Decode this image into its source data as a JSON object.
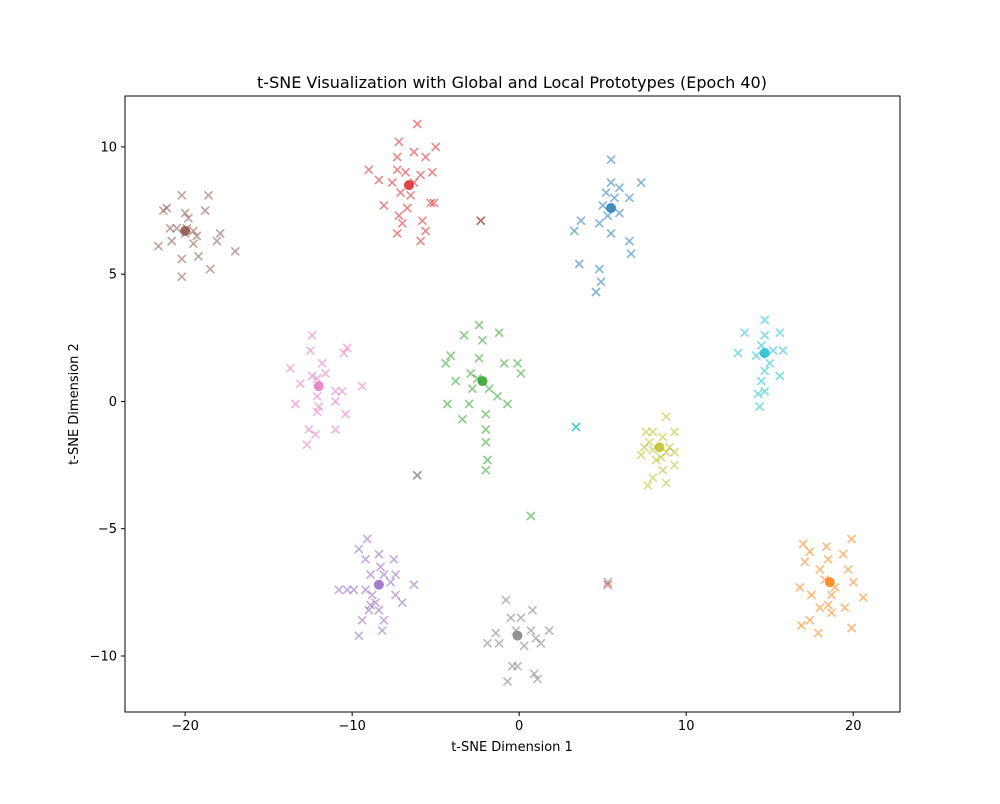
{
  "chart_data": {
    "type": "scatter",
    "title": "t-SNE Visualization with Global and Local Prototypes (Epoch 40)",
    "xlabel": "t-SNE Dimension 1",
    "ylabel": "t-SNE Dimension 2",
    "xlim": [
      -23.6,
      22.8
    ],
    "ylim": [
      -12.2,
      12.0
    ],
    "xticks": [
      -20,
      -10,
      0,
      10,
      20
    ],
    "yticks": [
      -10,
      -5,
      0,
      5,
      10
    ],
    "grid": false,
    "legend": "none",
    "marker": "x",
    "clusters": [
      {
        "color": "#1f77b4",
        "prototype": [
          5.5,
          7.6
        ],
        "points": [
          [
            5.5,
            9.5
          ],
          [
            5.5,
            8.6
          ],
          [
            6.0,
            8.4
          ],
          [
            5.2,
            8.2
          ],
          [
            5.7,
            8.0
          ],
          [
            5.0,
            7.7
          ],
          [
            6.0,
            7.4
          ],
          [
            5.3,
            7.3
          ],
          [
            4.8,
            7.0
          ],
          [
            3.7,
            7.1
          ],
          [
            5.5,
            6.6
          ],
          [
            6.6,
            6.3
          ],
          [
            3.3,
            6.7
          ],
          [
            6.7,
            5.8
          ],
          [
            3.6,
            5.4
          ],
          [
            4.8,
            5.2
          ],
          [
            4.9,
            4.7
          ],
          [
            4.6,
            4.3
          ],
          [
            7.3,
            8.6
          ],
          [
            6.6,
            8.0
          ]
        ]
      },
      {
        "color": "#ff7f0e",
        "prototype": [
          18.6,
          -7.1
        ],
        "points": [
          [
            17.0,
            -5.6
          ],
          [
            17.4,
            -5.9
          ],
          [
            17.1,
            -6.3
          ],
          [
            18.0,
            -6.6
          ],
          [
            18.4,
            -5.7
          ],
          [
            19.4,
            -6.0
          ],
          [
            19.9,
            -5.4
          ],
          [
            18.5,
            -6.2
          ],
          [
            19.7,
            -6.6
          ],
          [
            18.3,
            -7.0
          ],
          [
            18.9,
            -7.3
          ],
          [
            18.7,
            -7.6
          ],
          [
            20.0,
            -7.1
          ],
          [
            20.6,
            -7.7
          ],
          [
            17.5,
            -7.6
          ],
          [
            16.8,
            -7.3
          ],
          [
            18.0,
            -8.1
          ],
          [
            18.7,
            -8.3
          ],
          [
            19.5,
            -8.1
          ],
          [
            17.4,
            -8.6
          ],
          [
            16.9,
            -8.8
          ],
          [
            17.9,
            -9.1
          ],
          [
            19.9,
            -8.9
          ],
          [
            18.5,
            -8.0
          ]
        ]
      },
      {
        "color": "#2ca02c",
        "prototype": [
          -2.2,
          0.8
        ],
        "points": [
          [
            -2.4,
            3.0
          ],
          [
            -1.2,
            2.7
          ],
          [
            -2.2,
            2.4
          ],
          [
            -3.3,
            2.6
          ],
          [
            -2.4,
            1.7
          ],
          [
            -4.1,
            1.8
          ],
          [
            -0.9,
            1.5
          ],
          [
            -0.1,
            1.5
          ],
          [
            -4.4,
            1.5
          ],
          [
            0.1,
            1.1
          ],
          [
            -2.9,
            1.1
          ],
          [
            -1.8,
            0.5
          ],
          [
            -3.8,
            0.8
          ],
          [
            -2.5,
            0.9
          ],
          [
            -2.8,
            0.5
          ],
          [
            -3.0,
            -0.1
          ],
          [
            -1.3,
            0.2
          ],
          [
            -0.7,
            -0.1
          ],
          [
            -4.3,
            -0.1
          ],
          [
            -2.0,
            -0.5
          ],
          [
            -3.4,
            -0.7
          ],
          [
            -2.0,
            -1.1
          ],
          [
            -2.0,
            -1.6
          ],
          [
            -1.9,
            -2.3
          ],
          [
            -2.0,
            -2.7
          ]
        ]
      },
      {
        "color": "#d62728",
        "prototype": [
          -6.6,
          8.5
        ],
        "points": [
          [
            -6.1,
            10.9
          ],
          [
            -7.2,
            10.2
          ],
          [
            -5.0,
            10.0
          ],
          [
            -7.3,
            9.6
          ],
          [
            -6.3,
            9.8
          ],
          [
            -5.6,
            9.6
          ],
          [
            -9.0,
            9.1
          ],
          [
            -7.3,
            9.1
          ],
          [
            -6.8,
            9.0
          ],
          [
            -5.9,
            8.9
          ],
          [
            -5.2,
            9.0
          ],
          [
            -8.4,
            8.7
          ],
          [
            -7.6,
            8.6
          ],
          [
            -6.3,
            8.6
          ],
          [
            -7.1,
            8.2
          ],
          [
            -6.5,
            8.1
          ],
          [
            -5.3,
            7.8
          ],
          [
            -8.1,
            7.7
          ],
          [
            -6.7,
            7.6
          ],
          [
            -7.2,
            7.3
          ],
          [
            -5.8,
            7.1
          ],
          [
            -7.0,
            7.0
          ],
          [
            -5.6,
            6.7
          ],
          [
            -7.3,
            6.6
          ],
          [
            -5.9,
            6.3
          ],
          [
            -2.3,
            7.1
          ],
          [
            -5.1,
            7.8
          ]
        ]
      },
      {
        "color": "#9467bd",
        "prototype": [
          -8.4,
          -7.2
        ],
        "points": [
          [
            -9.1,
            -5.4
          ],
          [
            -9.6,
            -5.8
          ],
          [
            -9.2,
            -6.2
          ],
          [
            -8.4,
            -6.0
          ],
          [
            -7.5,
            -6.2
          ],
          [
            -8.3,
            -6.5
          ],
          [
            -8.9,
            -6.8
          ],
          [
            -8.1,
            -6.8
          ],
          [
            -7.4,
            -6.8
          ],
          [
            -6.3,
            -7.2
          ],
          [
            -7.7,
            -7.1
          ],
          [
            -9.2,
            -7.4
          ],
          [
            -8.8,
            -7.6
          ],
          [
            -9.9,
            -7.4
          ],
          [
            -10.3,
            -7.4
          ],
          [
            -10.8,
            -7.4
          ],
          [
            -7.4,
            -7.6
          ],
          [
            -8.6,
            -7.9
          ],
          [
            -9.0,
            -8.2
          ],
          [
            -8.4,
            -8.2
          ],
          [
            -7.0,
            -7.9
          ],
          [
            -8.1,
            -8.6
          ],
          [
            -9.4,
            -8.6
          ],
          [
            -8.2,
            -9.0
          ],
          [
            -9.6,
            -9.2
          ],
          [
            -8.9,
            -8.0
          ]
        ]
      },
      {
        "color": "#8c564b",
        "prototype": [
          -20.0,
          6.7
        ],
        "points": [
          [
            -20.2,
            8.1
          ],
          [
            -18.6,
            8.1
          ],
          [
            -21.1,
            7.6
          ],
          [
            -21.3,
            7.5
          ],
          [
            -20.0,
            7.4
          ],
          [
            -19.8,
            7.2
          ],
          [
            -18.8,
            7.5
          ],
          [
            -20.9,
            6.8
          ],
          [
            -20.5,
            6.8
          ],
          [
            -19.9,
            6.8
          ],
          [
            -19.5,
            6.7
          ],
          [
            -20.0,
            6.6
          ],
          [
            -19.3,
            6.5
          ],
          [
            -17.9,
            6.6
          ],
          [
            -20.8,
            6.3
          ],
          [
            -19.5,
            6.2
          ],
          [
            -18.1,
            6.3
          ],
          [
            -21.6,
            6.1
          ],
          [
            -17.0,
            5.9
          ],
          [
            -20.2,
            5.6
          ],
          [
            -19.2,
            5.7
          ],
          [
            -18.5,
            5.2
          ],
          [
            -20.2,
            4.9
          ]
        ]
      },
      {
        "color": "#e377c2",
        "prototype": [
          -12.0,
          0.6
        ],
        "points": [
          [
            -12.4,
            2.6
          ],
          [
            -12.5,
            2.0
          ],
          [
            -10.3,
            2.1
          ],
          [
            -10.5,
            1.9
          ],
          [
            -13.7,
            1.3
          ],
          [
            -11.8,
            1.5
          ],
          [
            -12.4,
            1.0
          ],
          [
            -13.1,
            0.7
          ],
          [
            -12.1,
            0.9
          ],
          [
            -11.6,
            1.1
          ],
          [
            -9.4,
            0.6
          ],
          [
            -10.6,
            0.4
          ],
          [
            -11.0,
            0.4
          ],
          [
            -12.1,
            0.2
          ],
          [
            -11.0,
            0.0
          ],
          [
            -13.4,
            -0.1
          ],
          [
            -12.1,
            -0.4
          ],
          [
            -10.4,
            -0.5
          ],
          [
            -12.6,
            -1.1
          ],
          [
            -11.0,
            -1.1
          ],
          [
            -12.2,
            -1.3
          ],
          [
            -12.7,
            -1.7
          ],
          [
            -12.0,
            -0.2
          ]
        ]
      },
      {
        "color": "#7f7f7f",
        "prototype": [
          -0.1,
          -9.2
        ],
        "points": [
          [
            -0.8,
            -7.8
          ],
          [
            0.8,
            -8.2
          ],
          [
            0.1,
            -8.5
          ],
          [
            -0.5,
            -8.5
          ],
          [
            1.8,
            -9.0
          ],
          [
            0.7,
            -9.0
          ],
          [
            -0.2,
            -9.0
          ],
          [
            -1.4,
            -9.1
          ],
          [
            1.0,
            -9.3
          ],
          [
            -1.9,
            -9.5
          ],
          [
            -1.2,
            -9.5
          ],
          [
            0.3,
            -9.6
          ],
          [
            1.3,
            -9.5
          ],
          [
            -0.4,
            -10.4
          ],
          [
            -0.1,
            -10.4
          ],
          [
            0.9,
            -10.7
          ],
          [
            1.1,
            -10.9
          ],
          [
            -0.7,
            -11.0
          ],
          [
            -6.1,
            -2.9
          ]
        ]
      },
      {
        "color": "#bcbd22",
        "prototype": [
          8.4,
          -1.8
        ],
        "points": [
          [
            8.8,
            -0.6
          ],
          [
            9.3,
            -1.2
          ],
          [
            7.6,
            -1.2
          ],
          [
            8.0,
            -1.2
          ],
          [
            8.6,
            -1.4
          ],
          [
            7.8,
            -1.6
          ],
          [
            7.5,
            -1.8
          ],
          [
            8.0,
            -1.9
          ],
          [
            9.0,
            -1.8
          ],
          [
            8.8,
            -2.0
          ],
          [
            9.3,
            -2.0
          ],
          [
            8.5,
            -2.2
          ],
          [
            8.2,
            -2.3
          ],
          [
            7.3,
            -2.1
          ],
          [
            9.3,
            -2.5
          ],
          [
            8.6,
            -2.7
          ],
          [
            8.0,
            -3.0
          ],
          [
            8.8,
            -3.2
          ],
          [
            7.7,
            -3.3
          ]
        ]
      },
      {
        "color": "#17becf",
        "prototype": [
          14.7,
          1.9
        ],
        "points": [
          [
            14.7,
            3.2
          ],
          [
            13.5,
            2.7
          ],
          [
            14.7,
            2.6
          ],
          [
            15.6,
            2.7
          ],
          [
            14.5,
            2.2
          ],
          [
            15.2,
            2.0
          ],
          [
            15.8,
            2.0
          ],
          [
            13.1,
            1.9
          ],
          [
            14.2,
            1.8
          ],
          [
            15.0,
            1.5
          ],
          [
            14.7,
            1.2
          ],
          [
            15.6,
            1.0
          ],
          [
            14.5,
            0.8
          ],
          [
            14.3,
            0.3
          ],
          [
            14.7,
            0.4
          ],
          [
            14.4,
            -0.2
          ],
          [
            3.4,
            -1.0
          ]
        ]
      }
    ],
    "overlap_markers": [
      {
        "color": "#8c564b",
        "point": [
          -2.3,
          7.1
        ]
      },
      {
        "color": "#7f7f7f",
        "point": [
          -6.1,
          -2.9
        ]
      },
      {
        "color": "#17becf",
        "point": [
          3.4,
          -1.0
        ]
      },
      {
        "color": "#2ca02c",
        "point": [
          0.7,
          -4.5
        ]
      },
      {
        "color": "#d62728",
        "point": [
          5.3,
          -7.2
        ]
      },
      {
        "color": "#7f7f7f",
        "point": [
          5.3,
          -7.1
        ]
      }
    ]
  }
}
